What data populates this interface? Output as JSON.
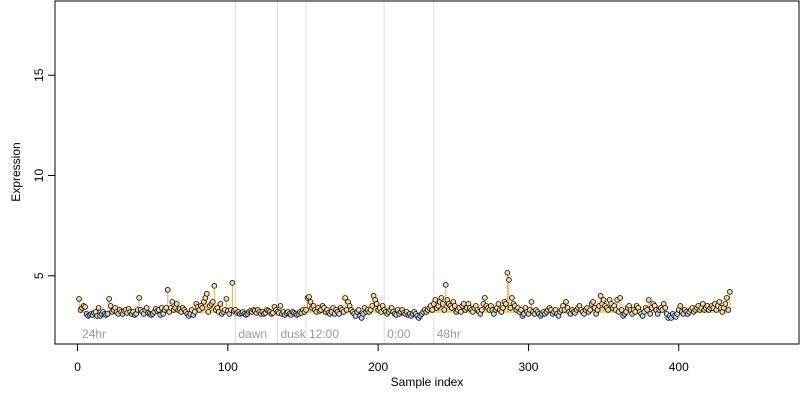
{
  "chart_data": {
    "type": "scatter",
    "xlabel": "Sample index",
    "ylabel": "Expression",
    "xlim": [
      -15,
      480
    ],
    "ylim": [
      1.6,
      18.7
    ],
    "x_ticks": [
      0,
      100,
      200,
      300,
      400
    ],
    "y_ticks": [
      5,
      10,
      15
    ],
    "baseline": 3.15,
    "grid": false,
    "regions": [
      {
        "label": "24hr",
        "x": 1
      },
      {
        "label": "dawn",
        "x": 105
      },
      {
        "label": "dusk",
        "x": 133
      },
      {
        "label": "12:00",
        "x": 152
      },
      {
        "label": "0:00",
        "x": 204
      },
      {
        "label": "48hr",
        "x": 237
      }
    ],
    "vlines": [
      105,
      133,
      152,
      204,
      237
    ],
    "points_x_start": 1,
    "points_y": [
      3.85,
      3.3,
      3.4,
      3.5,
      3.45,
      3.1,
      3.0,
      3.05,
      3.1,
      3.05,
      3.15,
      3.2,
      3.0,
      3.4,
      3.0,
      3.1,
      3.2,
      3.1,
      3.05,
      3.1,
      3.85,
      3.5,
      3.2,
      3.3,
      3.4,
      3.2,
      3.1,
      3.3,
      3.2,
      3.1,
      3.25,
      3.3,
      3.15,
      3.35,
      3.2,
      3.1,
      3.2,
      3.05,
      3.1,
      3.3,
      3.9,
      3.3,
      3.2,
      3.1,
      3.3,
      3.4,
      3.15,
      3.1,
      3.05,
      3.1,
      3.2,
      3.35,
      3.25,
      3.3,
      3.05,
      3.4,
      3.1,
      3.3,
      3.4,
      4.3,
      3.2,
      3.4,
      3.7,
      3.3,
      3.4,
      3.6,
      3.3,
      3.35,
      3.2,
      3.4,
      3.3,
      3.2,
      3.1,
      3.0,
      3.1,
      3.3,
      3.05,
      3.2,
      3.6,
      3.45,
      3.3,
      3.5,
      3.4,
      3.7,
      3.9,
      4.1,
      3.2,
      3.5,
      3.6,
      3.7,
      4.5,
      3.3,
      3.4,
      3.2,
      3.6,
      3.1,
      3.2,
      3.3,
      3.85,
      3.25,
      3.1,
      3.3,
      4.65,
      3.25,
      3.3,
      3.15,
      3.2,
      3.1,
      3.15,
      3.2,
      3.1,
      3.05,
      3.1,
      3.2,
      3.25,
      3.2,
      3.3,
      3.25,
      3.15,
      3.3,
      3.2,
      3.1,
      3.2,
      3.1,
      3.15,
      3.3,
      3.25,
      3.2,
      3.1,
      3.15,
      3.45,
      3.3,
      3.2,
      3.15,
      3.5,
      3.1,
      3.2,
      3.05,
      3.15,
      3.2,
      3.1,
      3.05,
      3.2,
      3.15,
      3.1,
      3.05,
      3.1,
      3.2,
      3.15,
      3.3,
      3.2,
      3.3,
      3.9,
      3.95,
      3.7,
      3.4,
      3.5,
      3.3,
      3.2,
      3.4,
      3.25,
      3.3,
      3.5,
      3.4,
      3.2,
      3.3,
      3.15,
      3.1,
      3.2,
      3.4,
      3.1,
      3.3,
      3.2,
      3.1,
      3.4,
      3.3,
      3.2,
      3.9,
      3.3,
      3.7,
      3.5,
      3.3,
      3.2,
      3.1,
      3.0,
      3.2,
      3.3,
      3.0,
      2.9,
      3.1,
      3.4,
      3.2,
      3.3,
      3.2,
      3.3,
      3.5,
      4.0,
      3.8,
      3.6,
      3.3,
      3.4,
      3.2,
      3.5,
      3.3,
      3.2,
      3.1,
      3.2,
      3.3,
      3.4,
      3.2,
      3.1,
      3.05,
      3.3,
      3.1,
      3.2,
      3.3,
      3.15,
      3.1,
      3.2,
      3.05,
      3.1,
      3.0,
      3.1,
      3.2,
      3.1,
      3.0,
      2.9,
      3.0,
      3.1,
      3.2,
      3.3,
      3.2,
      3.3,
      3.4,
      3.5,
      3.3,
      3.6,
      3.8,
      3.4,
      3.5,
      3.7,
      3.9,
      3.6,
      3.3,
      4.55,
      3.8,
      3.6,
      3.5,
      3.4,
      3.7,
      3.5,
      3.2,
      3.3,
      3.4,
      3.2,
      3.5,
      3.6,
      3.3,
      3.4,
      3.6,
      3.4,
      3.3,
      3.2,
      3.4,
      3.5,
      3.3,
      3.2,
      3.1,
      3.3,
      3.6,
      3.9,
      3.5,
      3.4,
      3.3,
      3.5,
      3.3,
      3.1,
      3.3,
      3.4,
      3.6,
      3.3,
      3.2,
      3.4,
      3.7,
      3.6,
      5.15,
      4.8,
      3.4,
      3.9,
      3.6,
      3.5,
      3.3,
      3.4,
      3.2,
      3.3,
      3.0,
      3.1,
      3.4,
      3.2,
      3.1,
      3.3,
      3.7,
      3.2,
      3.1,
      3.3,
      3.2,
      3.1,
      3.0,
      3.1,
      3.2,
      3.1,
      3.2,
      3.3,
      3.4,
      3.3,
      3.1,
      3.2,
      3.3,
      3.1,
      3.0,
      3.2,
      3.3,
      3.5,
      3.3,
      3.7,
      3.4,
      3.2,
      3.1,
      3.3,
      3.2,
      3.15,
      3.3,
      3.4,
      3.5,
      3.3,
      3.2,
      3.1,
      3.3,
      3.4,
      3.2,
      3.3,
      3.6,
      3.7,
      3.4,
      3.1,
      3.3,
      3.5,
      4.0,
      3.6,
      3.8,
      3.5,
      3.4,
      3.3,
      3.8,
      3.6,
      3.4,
      3.5,
      3.3,
      3.8,
      3.2,
      3.9,
      3.3,
      3.0,
      3.1,
      3.2,
      3.4,
      3.5,
      3.3,
      3.1,
      3.3,
      3.2,
      3.5,
      3.4,
      3.2,
      3.1,
      3.0,
      3.2,
      3.4,
      3.3,
      3.8,
      3.1,
      3.4,
      3.6,
      3.5,
      3.3,
      3.1,
      3.3,
      3.4,
      3.3,
      3.6,
      3.4,
      3.1,
      2.9,
      3.0,
      2.9,
      3.1,
      3.0,
      2.95,
      3.1,
      3.3,
      3.5,
      3.2,
      3.1,
      3.3,
      3.2,
      3.1,
      3.2,
      3.3,
      3.4,
      3.2,
      3.3,
      3.4,
      3.5,
      3.3,
      3.4,
      3.6,
      3.3,
      3.4,
      3.5,
      3.3,
      3.4,
      3.5,
      3.4,
      3.6,
      3.3,
      3.5,
      3.7,
      3.4,
      3.2,
      3.4,
      3.6,
      3.9,
      3.3,
      4.2
    ],
    "point_fill_high": "#f5dca0",
    "point_fill_low": "#c8d4ec",
    "stem_color": "#e3b04b",
    "vline_color": "#dcdcdc"
  }
}
